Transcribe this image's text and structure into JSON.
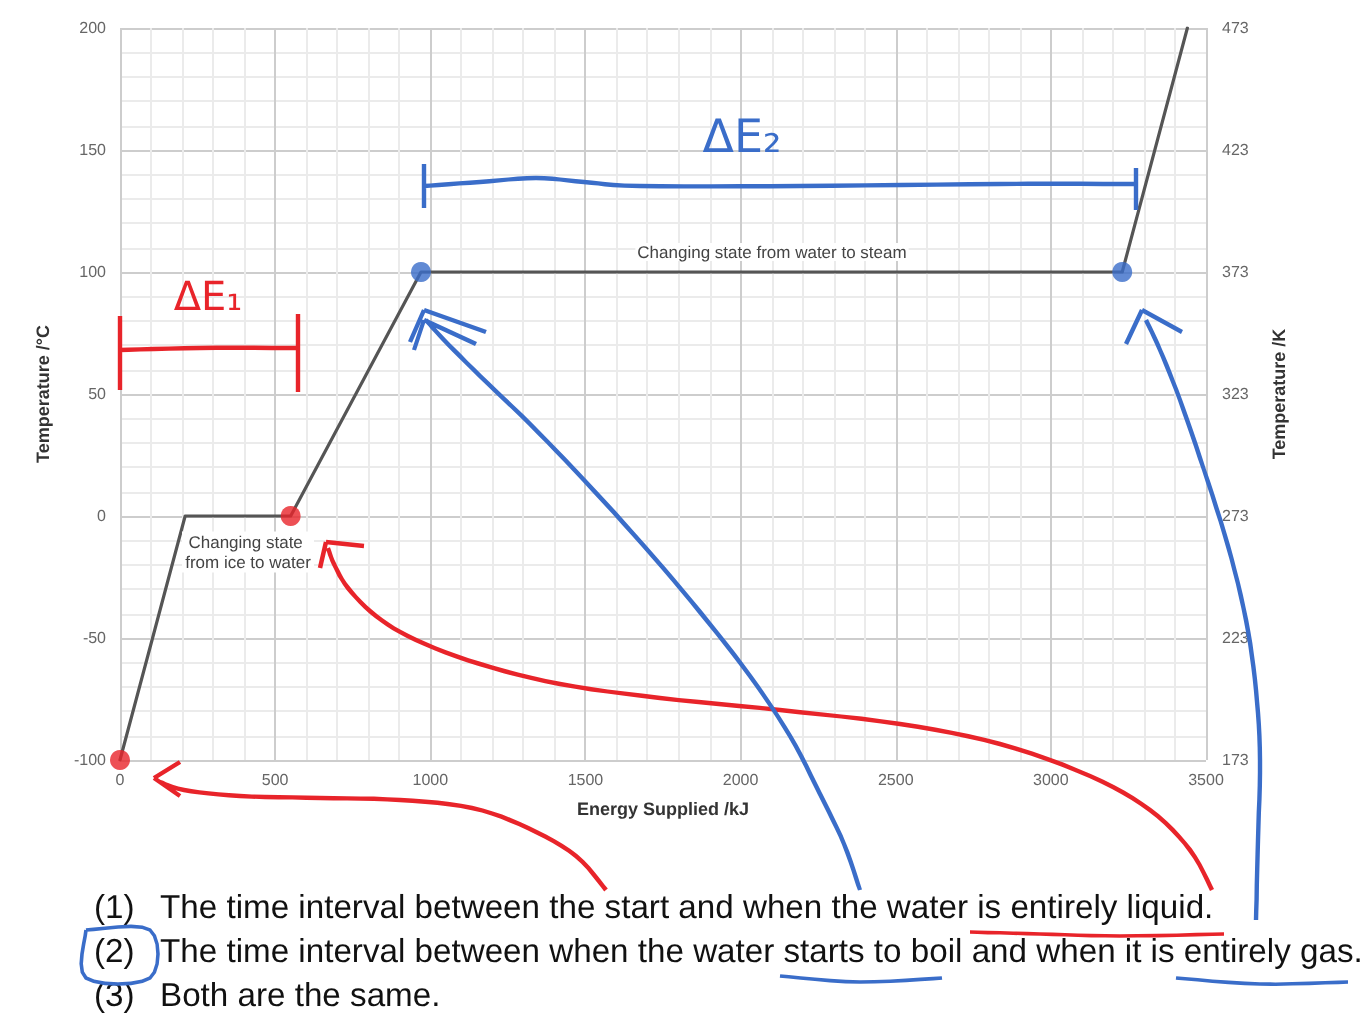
{
  "chart_data": {
    "type": "line",
    "xlabel": "Energy Supplied /kJ",
    "ylabel": "Temperature /°C",
    "y2label": "Temperature /K",
    "series": [
      {
        "x": [
          0,
          210,
          550,
          970,
          3230,
          3440
        ],
        "values": [
          -100,
          0,
          0,
          100,
          100,
          200
        ],
        "color": "#555555"
      },
      {
        "type": "scatter",
        "marker": "circle",
        "x": [
          0,
          550,
          970,
          3230
        ],
        "values": [
          -100,
          0,
          100,
          100
        ],
        "colors": [
          "#e8242a",
          "#e8242a",
          "#3a6dc9",
          "#3a6dc9"
        ]
      }
    ],
    "xlim": [
      0,
      3500
    ],
    "xticks": [
      0,
      500,
      1000,
      1500,
      2000,
      2500,
      3000,
      3500
    ],
    "ylim": [
      -100,
      200
    ],
    "yticks": [
      -100,
      -50,
      0,
      50,
      100,
      150,
      200
    ],
    "y2lim": [
      173,
      473
    ],
    "y2ticks": [
      173,
      223,
      273,
      323,
      373,
      423,
      473
    ],
    "grid": true,
    "marker": "none",
    "annotations": [
      "Changing state from ice to water",
      "Changing state from water to steam",
      "ΔE₁",
      "ΔE₂",
      "(1) The time interval between the start and when the water is entirely liquid.",
      "(2) The time interval between when the water starts to boil and when it is entirely gas.",
      "(3) Both are the same."
    ]
  }
}
